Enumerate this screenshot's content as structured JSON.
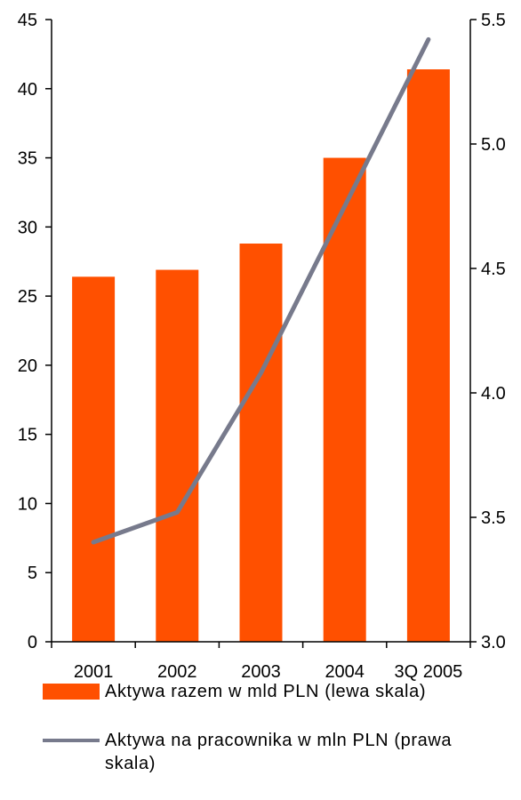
{
  "chart_data": {
    "type": "bar",
    "categories": [
      "2001",
      "2002",
      "2003",
      "2004",
      "3Q 2005"
    ],
    "series": [
      {
        "name": "Aktywa razem w mld PLN (lewa skala)",
        "type": "bar",
        "axis": "left",
        "color": "#ff5000",
        "values": [
          26.4,
          26.9,
          28.8,
          35.0,
          41.4
        ]
      },
      {
        "name": "Aktywa na pracownika w mln PLN (prawa skala)",
        "type": "line",
        "axis": "right",
        "color": "#777a8c",
        "values": [
          3.4,
          3.52,
          4.08,
          4.75,
          5.42
        ]
      }
    ],
    "left_axis": {
      "ylim": [
        0,
        45
      ],
      "ticks": [
        "0",
        "5",
        "10",
        "15",
        "20",
        "25",
        "30",
        "35",
        "40",
        "45"
      ]
    },
    "right_axis": {
      "ylim": [
        3.0,
        5.5
      ],
      "ticks": [
        "3.0",
        "3.5",
        "4.0",
        "4.5",
        "5.0",
        "5.5"
      ]
    },
    "grid": false,
    "legend_position": "bottom"
  }
}
